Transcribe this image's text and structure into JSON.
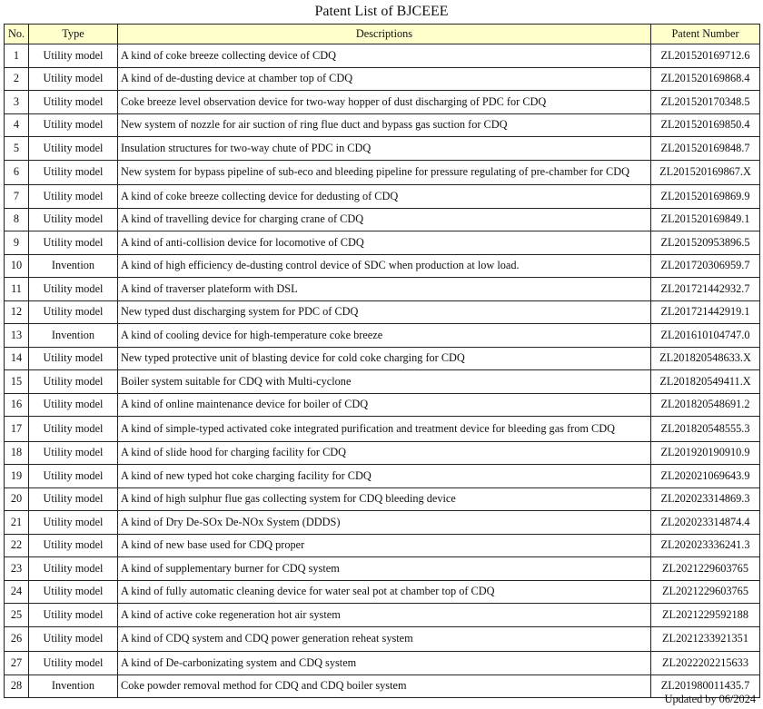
{
  "title": "Patent List of BJCEEE",
  "header_color": "#ffffcc",
  "columns": [
    "No.",
    "Type",
    "Descriptions",
    "Patent Number"
  ],
  "rows": [
    {
      "no": "1",
      "type": "Utility model",
      "desc": "A kind of coke breeze collecting device of CDQ",
      "patent": "ZL201520169712.6"
    },
    {
      "no": "2",
      "type": "Utility model",
      "desc": "A kind of de-dusting device at chamber top of CDQ",
      "patent": "ZL201520169868.4"
    },
    {
      "no": "3",
      "type": "Utility model",
      "desc": "Coke breeze level observation device for two-way hopper of dust discharging of PDC for CDQ",
      "patent": "ZL201520170348.5"
    },
    {
      "no": "4",
      "type": "Utility model",
      "desc": "New system of nozzle for air suction of ring flue duct and bypass gas suction for CDQ",
      "patent": "ZL201520169850.4"
    },
    {
      "no": "5",
      "type": "Utility model",
      "desc": "Insulation structures for two-way chute of PDC in CDQ",
      "patent": "ZL201520169848.7"
    },
    {
      "no": "6",
      "type": "Utility model",
      "desc": "New system for bypass pipeline of sub-eco and bleeding pipeline for pressure regulating of pre-chamber for CDQ",
      "patent": "ZL201520169867.X"
    },
    {
      "no": "7",
      "type": "Utility model",
      "desc": "A kind of coke breeze collecting device for dedusting of CDQ",
      "patent": "ZL201520169869.9"
    },
    {
      "no": "8",
      "type": "Utility model",
      "desc": "A kind of travelling device for charging crane of CDQ",
      "patent": "ZL201520169849.1"
    },
    {
      "no": "9",
      "type": "Utility model",
      "desc": "A kind of anti-collision device for locomotive of CDQ",
      "patent": "ZL201520953896.5"
    },
    {
      "no": "10",
      "type": "Invention",
      "desc": "A kind of high efficiency de-dusting control device of SDC when production at low load.",
      "patent": "ZL201720306959.7"
    },
    {
      "no": "11",
      "type": "Utility model",
      "desc": "A kind of traverser plateform with DSL",
      "patent": "ZL201721442932.7"
    },
    {
      "no": "12",
      "type": "Utility model",
      "desc": "New typed dust discharging system for PDC of CDQ",
      "patent": "ZL201721442919.1"
    },
    {
      "no": "13",
      "type": "Invention",
      "desc": "A kind of cooling device for high-temperature coke breeze",
      "patent": "ZL201610104747.0"
    },
    {
      "no": "14",
      "type": "Utility model",
      "desc": "New typed protective unit of blasting device for cold coke charging for CDQ",
      "patent": "ZL201820548633.X"
    },
    {
      "no": "15",
      "type": "Utility model",
      "desc": "Boiler system suitable for CDQ with Multi-cyclone",
      "patent": "ZL201820549411.X"
    },
    {
      "no": "16",
      "type": "Utility model",
      "desc": "A kind of online maintenance device for boiler of CDQ",
      "patent": "ZL201820548691.2"
    },
    {
      "no": "17",
      "type": "Utility model",
      "desc": "A kind of simple-typed activated coke integrated purification and treatment device for bleeding gas from CDQ",
      "patent": "ZL201820548555.3"
    },
    {
      "no": "18",
      "type": "Utility model",
      "desc": "A kind of slide hood for charging facility for CDQ",
      "patent": "ZL201920190910.9"
    },
    {
      "no": "19",
      "type": "Utility model",
      "desc": "A kind of new typed hot coke charging facility for CDQ",
      "patent": "ZL202021069643.9"
    },
    {
      "no": "20",
      "type": "Utility model",
      "desc": "A kind of high sulphur flue gas collecting system for CDQ bleeding device",
      "patent": "ZL202023314869.3"
    },
    {
      "no": "21",
      "type": "Utility model",
      "desc": "A kind of Dry De-SOx De-NOx System (DDDS)",
      "patent": "ZL202023314874.4"
    },
    {
      "no": "22",
      "type": "Utility model",
      "desc": "A kind of new base used for CDQ proper",
      "patent": "ZL202023336241.3"
    },
    {
      "no": "23",
      "type": "Utility model",
      "desc": "A kind of supplementary burner for CDQ system",
      "patent": "ZL2021229603765"
    },
    {
      "no": "24",
      "type": "Utility model",
      "desc": "A kind of fully automatic cleaning device for water seal pot at chamber top of CDQ",
      "patent": "ZL2021229603765"
    },
    {
      "no": "25",
      "type": "Utility model",
      "desc": "A kind of active coke regeneration hot air system",
      "patent": "ZL2021229592188"
    },
    {
      "no": "26",
      "type": "Utility model",
      "desc": "A kind of CDQ system and CDQ power generation reheat system",
      "patent": "ZL2021233921351"
    },
    {
      "no": "27",
      "type": "Utility model",
      "desc": "A kind of De-carbonizating system and CDQ system",
      "patent": "ZL2022202215633"
    },
    {
      "no": "28",
      "type": "Invention",
      "desc": "Coke powder removal method for CDQ and CDQ boiler system",
      "patent": "ZL201980011435.7"
    }
  ],
  "footer": "Updated by 06/2024"
}
